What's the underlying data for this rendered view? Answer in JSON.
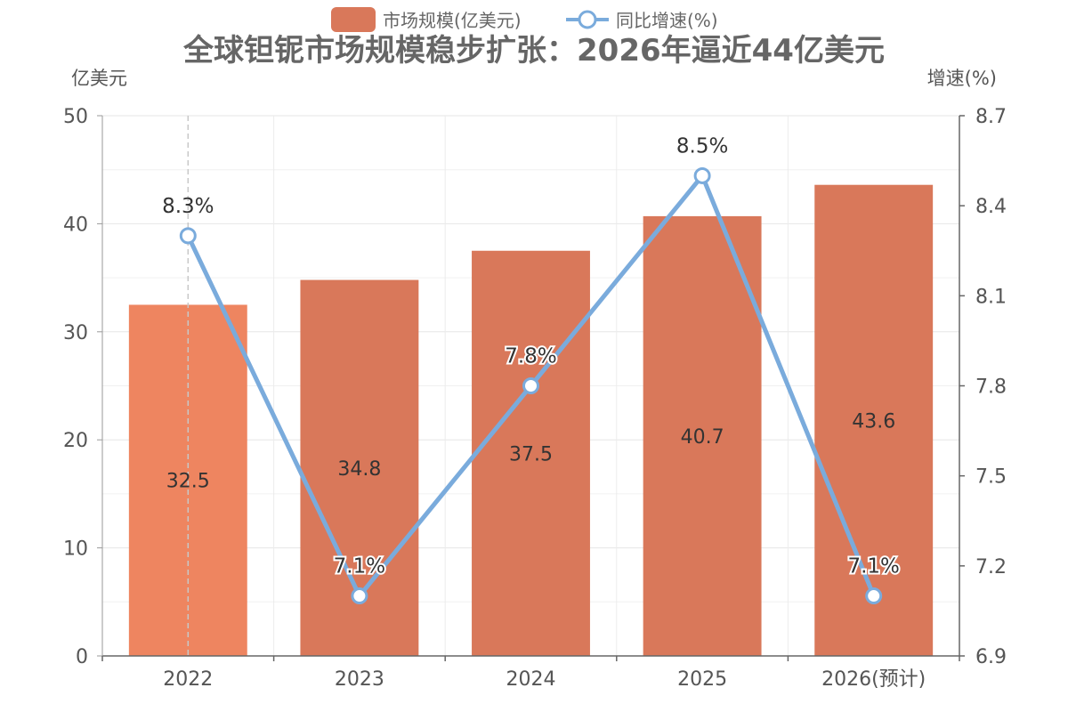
{
  "chart_data": {
    "type": "bar",
    "title": "全球钽铌市场规模稳步扩张：2026年逼近44亿美元",
    "categories": [
      "2022",
      "2023",
      "2024",
      "2025",
      "2026(预计)"
    ],
    "series": [
      {
        "name": "市场规模(亿美元)",
        "type": "bar",
        "axis": "left",
        "values": [
          32.5,
          34.8,
          37.5,
          40.7,
          43.6
        ],
        "value_labels": [
          "32.5",
          "34.8",
          "37.5",
          "40.7",
          "43.6"
        ],
        "color": "#d9785a",
        "highlight_color": "#ee8560"
      },
      {
        "name": "同比增速(%)",
        "type": "line",
        "axis": "right",
        "values": [
          8.3,
          7.1,
          7.8,
          8.5,
          7.1
        ],
        "value_labels": [
          "8.3%",
          "7.1%",
          "7.8%",
          "8.5%",
          "7.1%"
        ],
        "color": "#7aabdc"
      }
    ],
    "y_left": {
      "label": "亿美元",
      "range": [
        0,
        50
      ],
      "ticks": [
        "0",
        "10",
        "20",
        "30",
        "40",
        "50"
      ]
    },
    "y_right": {
      "label": "增速(%)",
      "range": [
        6.9,
        8.7
      ],
      "ticks": [
        "6.9",
        "7.2",
        "7.5",
        "7.8",
        "8.1",
        "8.4",
        "8.7"
      ]
    },
    "legend_position": "top-center",
    "grid": true,
    "highlighted_category": "2022"
  }
}
